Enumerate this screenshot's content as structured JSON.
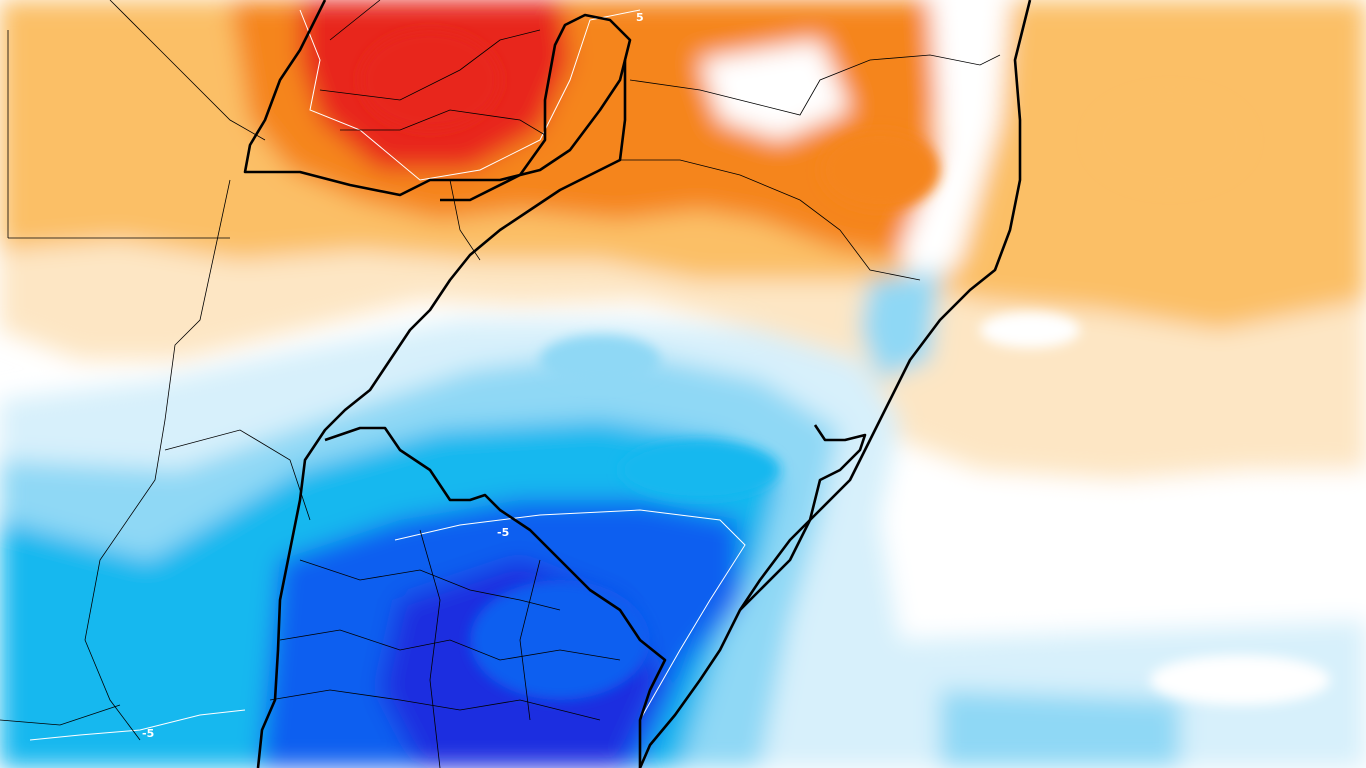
{
  "map": {
    "type": "anomaly-field-map",
    "palette": {
      "warm_strong": "#e8271a",
      "warm_mid": "#f5851d",
      "warm_light": "#fbbf66",
      "warm_pale": "#fde6c4",
      "neutral": "#ffffff",
      "cool_pale": "#d7f0fb",
      "cool_light": "#8fd8f5",
      "cool_mid": "#16b8ef",
      "cool_strong": "#0a5ff0",
      "cool_deep": "#1a2fe0",
      "contour_line": "#ffffff",
      "border_line": "#000000"
    },
    "contour_labels": [
      "5",
      "-5",
      "-5"
    ]
  }
}
